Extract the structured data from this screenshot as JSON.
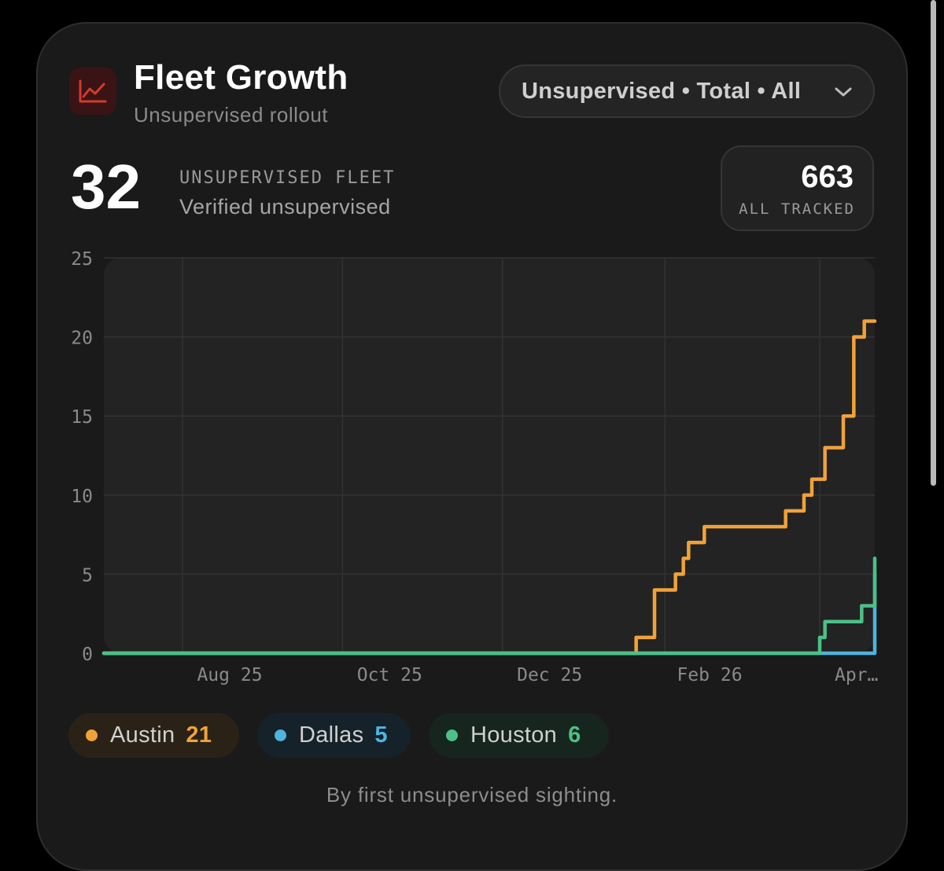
{
  "header": {
    "icon": "trending-chart-icon",
    "title": "Fleet Growth",
    "subtitle": "Unsupervised rollout",
    "filter_label": "Unsupervised • Total • All"
  },
  "stats": {
    "count": "32",
    "label": "UNSUPERVISED FLEET",
    "sublabel": "Verified unsupervised",
    "tracked_count": "663",
    "tracked_label": "ALL TRACKED"
  },
  "legend": [
    {
      "name": "Austin",
      "value": "21",
      "color": "#f0a23a",
      "bg": "#2a2216"
    },
    {
      "name": "Dallas",
      "value": "5",
      "color": "#4fb3dd",
      "bg": "#162229"
    },
    {
      "name": "Houston",
      "value": "6",
      "color": "#4cc087",
      "bg": "#16251d"
    }
  ],
  "footnote": "By first unsupervised sighting.",
  "colors": {
    "accent_orange": "#f0a23a",
    "accent_green": "#4cc087",
    "accent_blue": "#4fb3dd",
    "icon_red": "#d33a2f"
  },
  "chart_data": {
    "type": "line",
    "step": true,
    "x_tick_labels": [
      "Aug 25",
      "Oct 25",
      "Dec 25",
      "Feb 26",
      "Apr…"
    ],
    "y_ticks": [
      0,
      5,
      10,
      15,
      20,
      25
    ],
    "ylim": [
      0,
      25
    ],
    "xlim": [
      "2025-06-18",
      "2026-04-08"
    ],
    "grid": true,
    "series": [
      {
        "name": "Austin",
        "color": "#f0a23a",
        "x": [
          "2025-06-18",
          "2026-01-07",
          "2026-01-14",
          "2026-01-17",
          "2026-01-22",
          "2026-01-25",
          "2026-01-27",
          "2026-02-02",
          "2026-03-05",
          "2026-03-12",
          "2026-03-15",
          "2026-03-17",
          "2026-03-20",
          "2026-03-27",
          "2026-03-31",
          "2026-04-04",
          "2026-04-08"
        ],
        "values": [
          0,
          1,
          4,
          4,
          5,
          6,
          7,
          8,
          9,
          10,
          11,
          11,
          13,
          15,
          20,
          21,
          21
        ]
      },
      {
        "name": "Dallas",
        "color": "#4fb3dd",
        "x": [
          "2025-06-18",
          "2026-04-06",
          "2026-04-08"
        ],
        "values": [
          0,
          0,
          5
        ]
      },
      {
        "name": "Houston",
        "color": "#4cc087",
        "x": [
          "2025-06-18",
          "2026-03-18",
          "2026-03-20",
          "2026-03-31",
          "2026-04-03",
          "2026-04-07",
          "2026-04-08"
        ],
        "values": [
          0,
          1,
          2,
          2,
          3,
          3,
          6
        ]
      }
    ]
  }
}
